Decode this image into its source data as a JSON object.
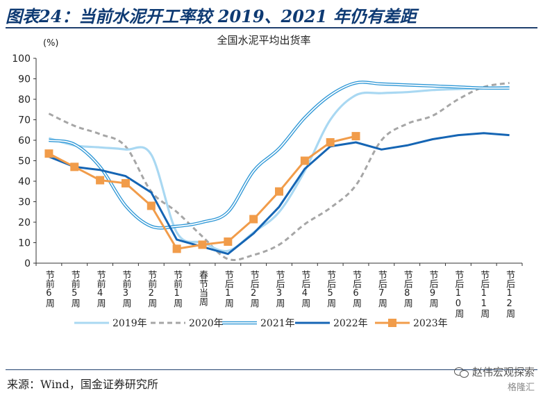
{
  "figure": {
    "title": "图表24：当前水泥开工率较 2019、2021 年仍有差距",
    "source": "来源：Wind，国金证券研究所",
    "watermark": "赵伟宏观探索",
    "watermark_sub": "格隆汇"
  },
  "chart_data": {
    "type": "line",
    "title": "全国水泥平均出货率",
    "unit_label": "(%)",
    "ylim": [
      0,
      100
    ],
    "yticks": [
      0,
      10,
      20,
      30,
      40,
      50,
      60,
      70,
      80,
      90,
      100
    ],
    "categories": [
      "节前6周",
      "节前5周",
      "节前4周",
      "节前3周",
      "节前2周",
      "节前1周",
      "春节当周",
      "节后1周",
      "节后2周",
      "节后3周",
      "节后4周",
      "节后5周",
      "节后6周",
      "节后7周",
      "节后8周",
      "节后9周",
      "节后10周",
      "节后11周",
      "节后12周"
    ],
    "legend_position": "bottom",
    "grid": false,
    "series": [
      {
        "name": "2019年",
        "style": "solid-thick",
        "color": "#a9d8f2",
        "values": [
          61,
          57.5,
          56.5,
          55.5,
          53,
          15,
          10,
          6,
          15,
          25,
          45,
          70,
          82,
          83,
          83.5,
          84.5,
          85,
          85.5,
          86
        ]
      },
      {
        "name": "2020年",
        "style": "dashed",
        "color": "#a6a6a6",
        "values": [
          73,
          67,
          63,
          57,
          35,
          25,
          13,
          2,
          4,
          9,
          19,
          27,
          38,
          60,
          68,
          72,
          80,
          86,
          88
        ]
      },
      {
        "name": "2021年",
        "style": "double",
        "color": "#2e97d6",
        "values": [
          60,
          58,
          47,
          28,
          18,
          18,
          20,
          25,
          45,
          56,
          71,
          82,
          88,
          87.5,
          87,
          86.5,
          86,
          85.5,
          85.5
        ]
      },
      {
        "name": "2022年",
        "style": "solid-thick",
        "color": "#1565b4",
        "values": [
          52,
          47,
          45.5,
          42.5,
          34.5,
          11.5,
          8,
          4.5,
          14.5,
          27.5,
          46,
          57,
          59,
          55.5,
          57.5,
          60.5,
          62.5,
          63.5,
          62.5
        ]
      },
      {
        "name": "2023年",
        "style": "line-square-markers",
        "color": "#f19c4a",
        "values": [
          53.5,
          47,
          40.5,
          39,
          28,
          7,
          9,
          10.5,
          21.5,
          35,
          50,
          59,
          62,
          null,
          null,
          null,
          null,
          null,
          null
        ]
      }
    ]
  }
}
